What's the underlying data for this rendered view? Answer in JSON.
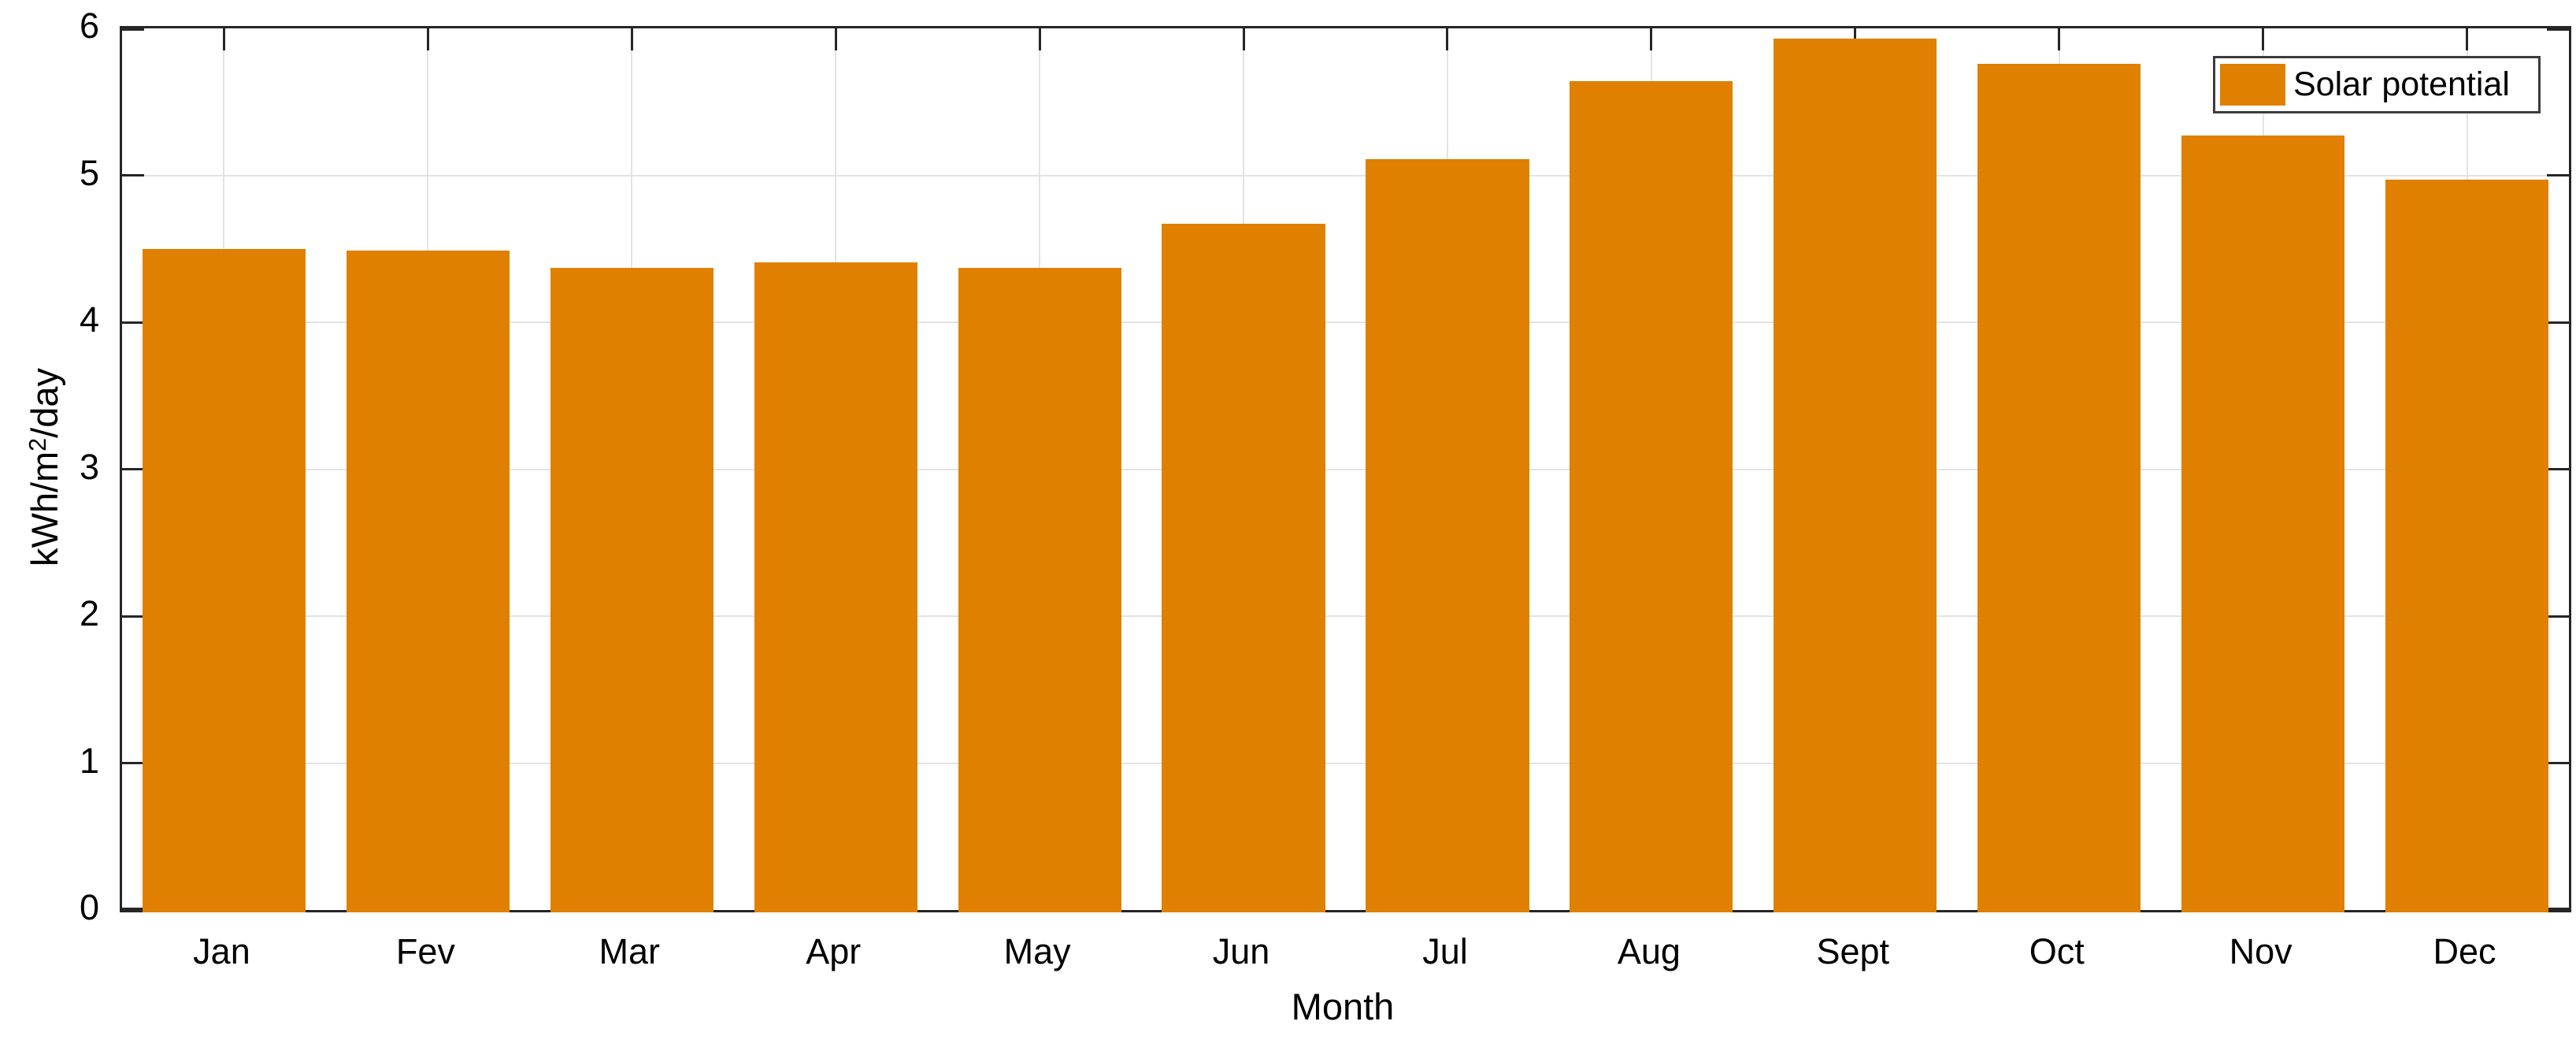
{
  "chart_data": {
    "type": "bar",
    "title": "",
    "xlabel": "Month",
    "ylabel": {
      "prefix": "kWh/m",
      "sup": "2",
      "suffix": "/day"
    },
    "categories": [
      "Jan",
      "Fev",
      "Mar",
      "Apr",
      "May",
      "Jun",
      "Jul",
      "Aug",
      "Sept",
      "Oct",
      "Nov",
      "Dec"
    ],
    "values": [
      4.5,
      4.49,
      4.37,
      4.41,
      4.37,
      4.67,
      5.11,
      5.64,
      5.93,
      5.76,
      5.27,
      4.97
    ],
    "series": [
      {
        "name": "Solar potential",
        "values": [
          4.5,
          4.49,
          4.37,
          4.41,
          4.37,
          4.67,
          5.11,
          5.64,
          5.93,
          5.76,
          5.27,
          4.97
        ]
      }
    ],
    "legend": {
      "label": "Solar potential",
      "position": "top-right"
    },
    "ylim": [
      0,
      6
    ],
    "yticks": [
      0,
      1,
      2,
      3,
      4,
      5,
      6
    ],
    "grid": true,
    "colors": {
      "bar": "#df8000",
      "axis": "#262626",
      "grid": "#e3e3e3",
      "legend_border": "#3c3c3c",
      "text": "#000000"
    }
  }
}
